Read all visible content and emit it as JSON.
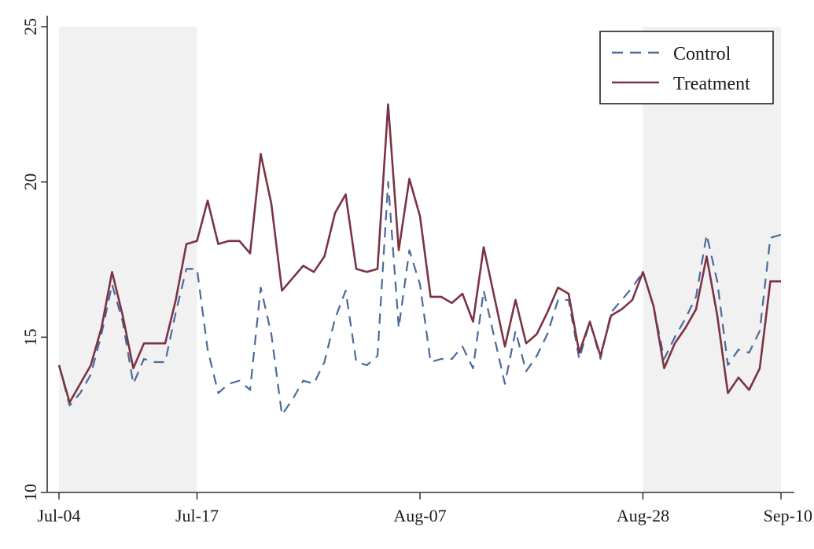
{
  "chart_data": {
    "type": "line",
    "title": "",
    "xlabel": "",
    "ylabel": "",
    "ylim": [
      10,
      25
    ],
    "x_tick_labels": [
      {
        "label": "Jul-04",
        "day": 0
      },
      {
        "label": "Jul-17",
        "day": 13
      },
      {
        "label": "Aug-07",
        "day": 34
      },
      {
        "label": "Aug-28",
        "day": 55
      },
      {
        "label": "Sep-10",
        "day": 68
      }
    ],
    "y_ticks": [
      10,
      15,
      20,
      25
    ],
    "y_tick_labels": [
      "10",
      "15",
      "20",
      "25"
    ],
    "shaded_periods": [
      {
        "start_day": 0,
        "end_day": 13
      },
      {
        "start_day": 55,
        "end_day": 68
      }
    ],
    "legend_position": "top-right",
    "series": [
      {
        "name": "Control",
        "style": "dashed",
        "color": "#4a6a9a",
        "x": [
          0,
          1,
          2,
          3,
          4,
          5,
          6,
          7,
          8,
          9,
          10,
          11,
          12,
          13,
          14,
          15,
          16,
          17,
          18,
          19,
          20,
          21,
          22,
          23,
          24,
          25,
          26,
          27,
          28,
          29,
          30,
          31,
          32,
          33,
          34,
          35,
          36,
          37,
          38,
          39,
          40,
          41,
          42,
          43,
          44,
          45,
          46,
          47,
          48,
          49,
          50,
          51,
          52,
          53,
          54,
          55,
          56,
          57,
          58,
          59,
          60,
          61,
          62,
          63,
          64,
          65,
          66,
          67,
          68
        ],
        "values": [
          14.1,
          12.8,
          13.2,
          13.8,
          15.1,
          16.7,
          15.5,
          13.5,
          14.3,
          14.2,
          14.2,
          15.8,
          17.2,
          17.2,
          14.6,
          13.2,
          13.5,
          13.6,
          13.3,
          16.6,
          15.1,
          12.5,
          13.0,
          13.6,
          13.5,
          14.2,
          15.6,
          16.5,
          14.2,
          14.1,
          14.4,
          20.0,
          15.3,
          17.8,
          16.7,
          14.2,
          14.3,
          14.3,
          14.7,
          14.0,
          16.5,
          15.0,
          13.5,
          15.2,
          13.9,
          14.4,
          15.1,
          16.2,
          16.2,
          14.3,
          15.5,
          14.3,
          15.8,
          16.2,
          16.6,
          17.1,
          16.0,
          14.3,
          15.0,
          15.6,
          16.3,
          18.3,
          16.8,
          14.1,
          14.6,
          14.5,
          15.2,
          18.2,
          18.3
        ]
      },
      {
        "name": "Treatment",
        "style": "solid",
        "color": "#7b3344",
        "x": [
          0,
          1,
          2,
          3,
          4,
          5,
          6,
          7,
          8,
          9,
          10,
          11,
          12,
          13,
          14,
          15,
          16,
          17,
          18,
          19,
          20,
          21,
          22,
          23,
          24,
          25,
          26,
          27,
          28,
          29,
          30,
          31,
          32,
          33,
          34,
          35,
          36,
          37,
          38,
          39,
          40,
          41,
          42,
          43,
          44,
          45,
          46,
          47,
          48,
          49,
          50,
          51,
          52,
          53,
          54,
          55,
          56,
          57,
          58,
          59,
          60,
          61,
          62,
          63,
          64,
          65,
          66,
          67,
          68
        ],
        "values": [
          14.1,
          12.9,
          13.5,
          14.1,
          15.3,
          17.1,
          15.7,
          14.0,
          14.8,
          14.8,
          14.8,
          16.2,
          18.0,
          18.1,
          19.4,
          18.0,
          18.1,
          18.1,
          17.7,
          20.9,
          19.3,
          16.5,
          16.9,
          17.3,
          17.1,
          17.6,
          19.0,
          19.6,
          17.2,
          17.1,
          17.2,
          22.5,
          17.8,
          20.1,
          18.9,
          16.3,
          16.3,
          16.1,
          16.4,
          15.5,
          17.9,
          16.3,
          14.7,
          16.2,
          14.8,
          15.1,
          15.8,
          16.6,
          16.4,
          14.5,
          15.5,
          14.4,
          15.7,
          15.9,
          16.2,
          17.1,
          16.0,
          14.0,
          14.8,
          15.3,
          15.9,
          17.6,
          15.7,
          13.2,
          13.7,
          13.3,
          14.0,
          16.8,
          16.8
        ]
      }
    ]
  }
}
